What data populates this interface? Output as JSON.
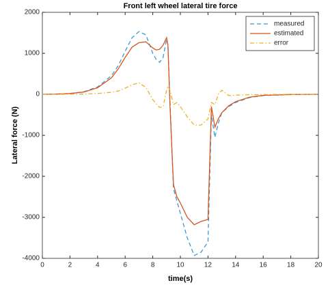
{
  "chart_data": {
    "type": "line",
    "title": "Front left wheel lateral tire force",
    "x_label": "time(s)",
    "y_label": "Lateral force (N)",
    "x": [
      0,
      1,
      2,
      3,
      4,
      5,
      5.5,
      6,
      6.5,
      7,
      7.5,
      8,
      8.25,
      8.5,
      8.75,
      9,
      9.1,
      9.25,
      9.5,
      9.75,
      10,
      10.5,
      11,
      11.5,
      12,
      12.25,
      12.5,
      12.75,
      13,
      13.5,
      14,
      15,
      16,
      18,
      20
    ],
    "series": [
      {
        "name": "measured",
        "color": "#3a98d8",
        "dash": "6,4",
        "values": [
          0,
          5,
          20,
          60,
          180,
          450,
          700,
          1050,
          1380,
          1530,
          1450,
          1000,
          850,
          780,
          900,
          1350,
          1200,
          -200,
          -2300,
          -2600,
          -2900,
          -3500,
          -3930,
          -3850,
          -3600,
          -500,
          -1050,
          -700,
          -450,
          -300,
          -200,
          -80,
          -30,
          -5,
          0
        ]
      },
      {
        "name": "estimated",
        "color": "#d95319",
        "dash": "none",
        "values": [
          0,
          5,
          20,
          55,
          160,
          400,
          620,
          900,
          1150,
          1260,
          1280,
          1130,
          1080,
          1100,
          1200,
          1380,
          1200,
          -300,
          -2200,
          -2500,
          -2650,
          -3000,
          -3180,
          -3100,
          -3050,
          -300,
          -800,
          -600,
          -450,
          -280,
          -180,
          -70,
          -25,
          -5,
          0
        ]
      },
      {
        "name": "error",
        "color": "#edb120",
        "dash": "6,3,1.5,3",
        "values": [
          0,
          0,
          2,
          5,
          20,
          50,
          80,
          150,
          230,
          280,
          170,
          -130,
          -230,
          -320,
          -300,
          100,
          200,
          100,
          -250,
          -200,
          -300,
          -550,
          -750,
          -750,
          -600,
          -200,
          -250,
          0,
          100,
          -30,
          -20,
          -10,
          -5,
          0,
          0
        ]
      }
    ],
    "xlim": [
      0,
      20
    ],
    "xticks": [
      0,
      2,
      4,
      6,
      8,
      10,
      12,
      14,
      16,
      18,
      20
    ],
    "ylim": [
      -4000,
      2000
    ],
    "yticks": [
      -4000,
      -3000,
      -2000,
      -1000,
      0,
      1000,
      2000
    ],
    "grid": false,
    "legend": "northeast"
  }
}
